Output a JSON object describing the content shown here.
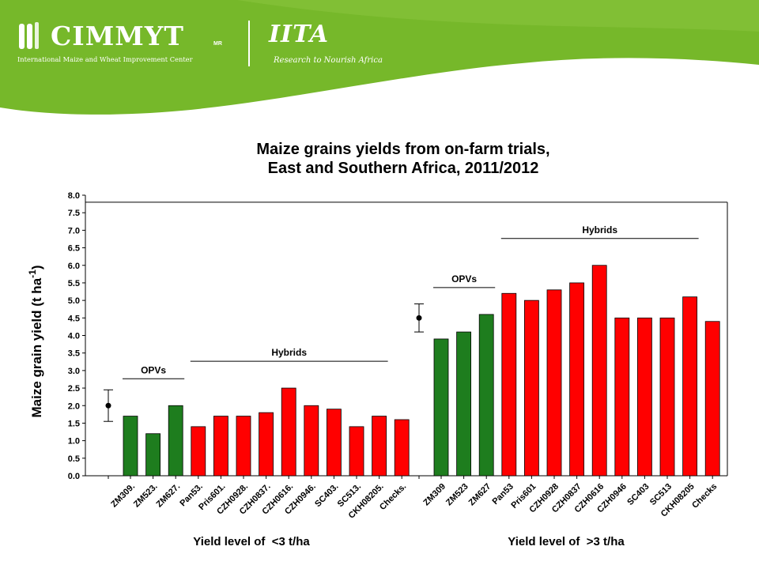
{
  "header": {
    "cimmyt_name": "CIMMYT",
    "cimmyt_mark": "MR",
    "cimmyt_tagline": "International Maize and Wheat Improvement Center",
    "iita_name": "IITA",
    "iita_tagline": "Research to Nourish Africa"
  },
  "colors": {
    "banner_green": "#76b82a",
    "opv_bar": "#1e7d1e",
    "hybrid_bar": "#ff0000",
    "axis": "#000000"
  },
  "chart_data": {
    "type": "bar",
    "title_line1": "Maize grains yields from on-farm trials,",
    "title_line2": "East and Southern Africa, 2011/2012",
    "ylabel": "Maize grain yield (t ha",
    "ylabel_sup": "-1",
    "ylabel_close": ")",
    "ylim": [
      0,
      8
    ],
    "yticks": [
      "0.0",
      "0.5",
      "1.0",
      "1.5",
      "2.0",
      "2.5",
      "3.0",
      "3.5",
      "4.0",
      "4.5",
      "5.0",
      "5.5",
      "6.0",
      "6.5",
      "7.0",
      "7.5",
      "8.0"
    ],
    "grid": false,
    "groups": [
      {
        "xlabel": "Yield level of  <3 t/ha",
        "mean_point": {
          "value": 2.0,
          "err_low": 1.55,
          "err_high": 2.45
        },
        "brackets": [
          {
            "label": "OPVs",
            "from": 0,
            "to": 2
          },
          {
            "label": "Hybrids",
            "from": 3,
            "to": 11
          }
        ],
        "categories": [
          "ZM309.",
          "ZM523.",
          "ZM627.",
          "Pan53.",
          "Pris601.",
          "CZH0928.",
          "CZH0837.",
          "CZH0616.",
          "CZH0946.",
          "SC403.",
          "SC513.",
          "CKH08205.",
          "Checks."
        ],
        "values": [
          1.7,
          1.2,
          2.0,
          1.4,
          1.7,
          1.7,
          1.8,
          2.5,
          2.0,
          1.9,
          1.4,
          1.7,
          1.6
        ],
        "kinds": [
          "opv",
          "opv",
          "opv",
          "hybrid",
          "hybrid",
          "hybrid",
          "hybrid",
          "hybrid",
          "hybrid",
          "hybrid",
          "hybrid",
          "hybrid",
          "hybrid"
        ]
      },
      {
        "xlabel": "Yield level of  >3 t/ha",
        "mean_point": {
          "value": 4.5,
          "err_low": 4.1,
          "err_high": 4.9
        },
        "brackets": [
          {
            "label": "OPVs",
            "from": 0,
            "to": 2
          },
          {
            "label": "Hybrids",
            "from": 3,
            "to": 11
          }
        ],
        "categories": [
          "ZM309",
          "ZM523",
          "ZM627",
          "Pan53",
          "Pris601",
          "CZH0928",
          "CZH0837",
          "CZH0616",
          "CZH0946",
          "SC403",
          "SC513",
          "CKH08205",
          "Checks"
        ],
        "values": [
          3.9,
          4.1,
          4.6,
          5.2,
          5.0,
          5.3,
          5.5,
          6.0,
          4.5,
          4.5,
          4.5,
          5.1,
          4.4
        ],
        "kinds": [
          "opv",
          "opv",
          "opv",
          "hybrid",
          "hybrid",
          "hybrid",
          "hybrid",
          "hybrid",
          "hybrid",
          "hybrid",
          "hybrid",
          "hybrid",
          "hybrid"
        ]
      }
    ]
  }
}
